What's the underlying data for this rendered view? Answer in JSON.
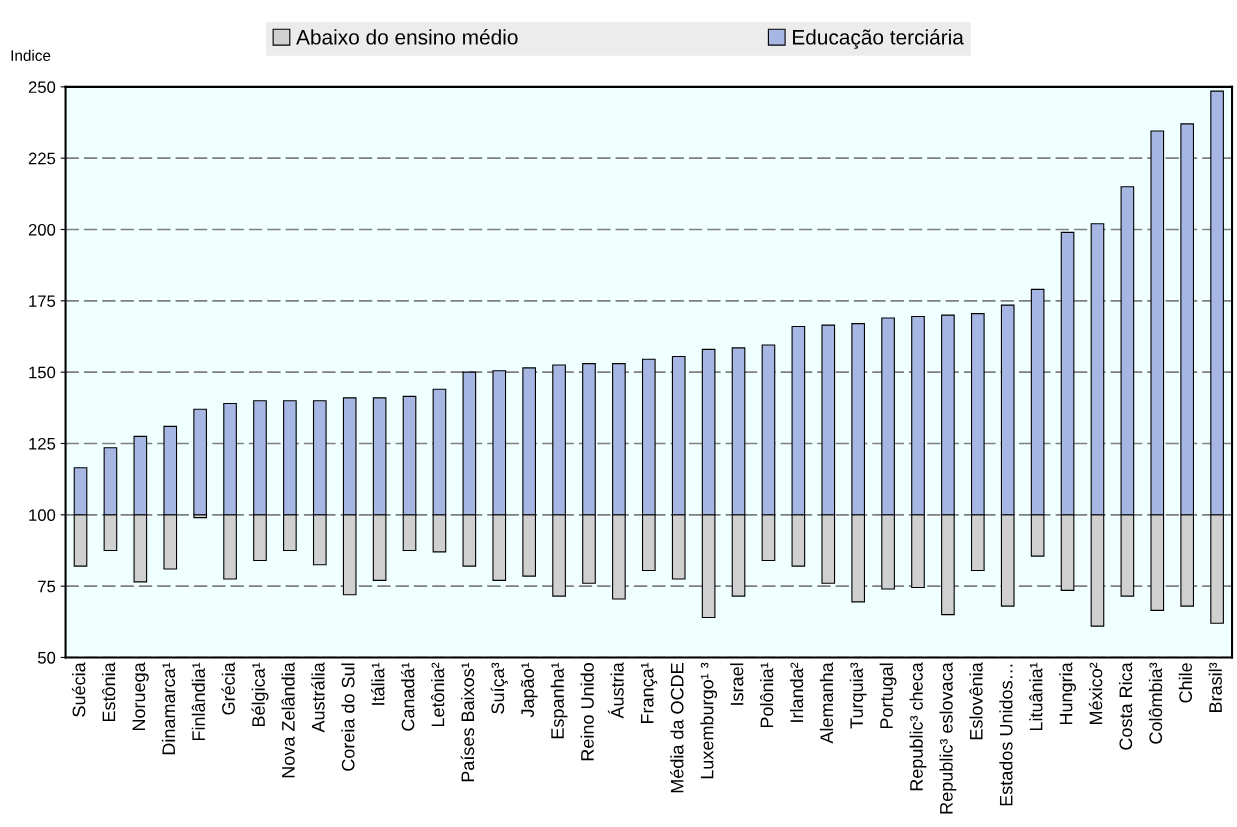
{
  "chart_data": {
    "type": "bar",
    "ylabel": "Indice",
    "categories": [
      "Suécia",
      "Estônia",
      "Noruega",
      "Dinamarca¹",
      "Finlândia¹",
      "Grécia",
      "Bélgica¹",
      "Nova Zelândia",
      "Austrália",
      "Coreia do Sul",
      "Itália¹",
      "Canadá¹",
      "Letônia²",
      "Países Baixos¹",
      "Suíça³",
      "Japão¹",
      "Espanha¹",
      "Reino Unido",
      "Áustria",
      "França¹",
      "Média da OCDE",
      "Luxemburgo¹ ³",
      "Israel",
      "Polônia¹",
      "Irlanda²",
      "Alemanha",
      "Turquia³",
      "Portugal",
      "Republic³ checa",
      "Republic³ eslovaca",
      "Eslovênia",
      "Estados Unidos…",
      "Lituânia¹",
      "Hungria",
      "México²",
      "Costa Rica",
      "Colômbia³",
      "Chile",
      "Brasil³"
    ],
    "series": [
      {
        "name": "Abaixo do ensino médio",
        "color": "#d0d0d0",
        "base": [
          100,
          100,
          100,
          100,
          100,
          100,
          100,
          100,
          100,
          100,
          100,
          100,
          100,
          100,
          100,
          100,
          100,
          100,
          100,
          100,
          100,
          100,
          100,
          100,
          100,
          100,
          100,
          100,
          100,
          100,
          100,
          100,
          100,
          100,
          100,
          100,
          100,
          100,
          100
        ],
        "values": [
          -18,
          -12.5,
          -23.5,
          -19,
          -1,
          -22.5,
          -16,
          -12.5,
          -17.5,
          -28,
          -23,
          -12.5,
          -13,
          -18,
          -23,
          -21.5,
          -28.5,
          -24,
          -29.5,
          -19.5,
          -22.5,
          -36,
          -28.5,
          -16,
          -18,
          -24,
          -30.5,
          -26,
          -25.5,
          -35,
          -19.5,
          -32,
          -14.5,
          -26.5,
          -39,
          -28.5,
          -33.5,
          -32,
          -38
        ]
      },
      {
        "name": "Educação terciária",
        "color": "#a6b7e3",
        "base": [
          100,
          100,
          100,
          100,
          100,
          100,
          100,
          100,
          100,
          100,
          100,
          100,
          100,
          100,
          100,
          100,
          100,
          100,
          100,
          100,
          100,
          100,
          100,
          100,
          100,
          100,
          100,
          100,
          100,
          100,
          100,
          100,
          100,
          100,
          100,
          100,
          100,
          100,
          100
        ],
        "values": [
          16.5,
          23.5,
          27.5,
          31,
          37,
          39,
          40,
          40,
          40,
          41,
          41,
          41.5,
          44,
          50,
          50.5,
          51.5,
          52.5,
          53,
          53,
          54.5,
          55.5,
          58,
          58.5,
          59.5,
          66,
          66.5,
          67,
          69,
          69.5,
          70,
          70.5,
          73.5,
          79,
          99,
          102,
          115,
          134.5,
          137,
          148.5
        ]
      }
    ],
    "ylim": [
      50,
      250
    ],
    "yticks": [
      50,
      75,
      100,
      125,
      150,
      175,
      200,
      225,
      250
    ],
    "grid": "y",
    "legend": "top"
  }
}
